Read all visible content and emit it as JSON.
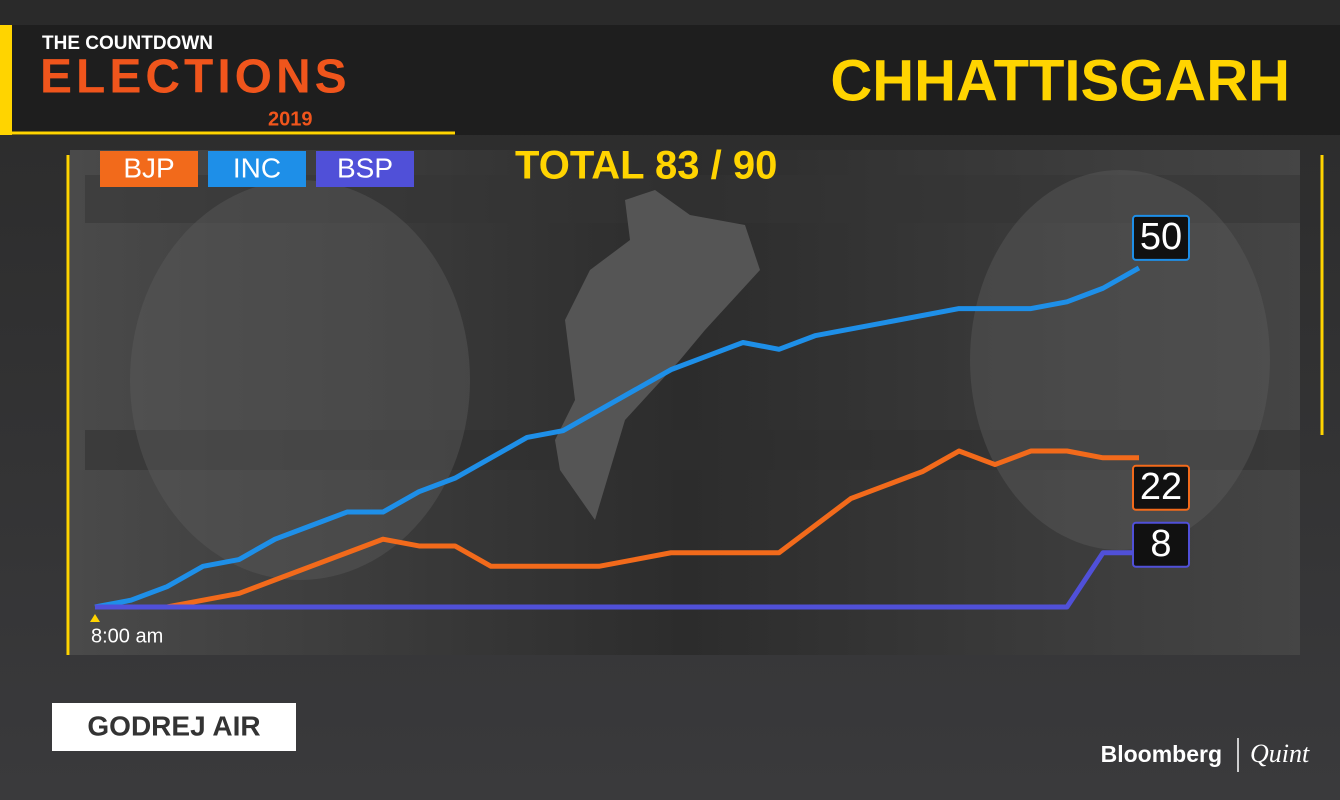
{
  "header": {
    "kicker": "THE COUNTDOWN",
    "brand": "ELECTIONS",
    "year": "2019",
    "state": "CHHATTISGARH"
  },
  "sponsor": "GODREJ AIR",
  "logo": {
    "left": "Bloomberg",
    "right": "Quint"
  },
  "chart_data": {
    "type": "line",
    "title": "TOTAL 83 / 90",
    "categories": [
      "8:00 am",
      null,
      null,
      null,
      null,
      null,
      null,
      null,
      null,
      null,
      null,
      null,
      null,
      null,
      null,
      null,
      null,
      null,
      null,
      null,
      null,
      null,
      null,
      null,
      null,
      null,
      null,
      null,
      null,
      null
    ],
    "ylim": [
      0,
      55
    ],
    "series": [
      {
        "name": "BJP",
        "color": "#f26a1b",
        "values": [
          0,
          0,
          0,
          1,
          2,
          4,
          6,
          8,
          10,
          9,
          9,
          6,
          6,
          6,
          6,
          7,
          8,
          8,
          8,
          8,
          12,
          16,
          18,
          20,
          23,
          21,
          23,
          23,
          22,
          22
        ]
      },
      {
        "name": "INC",
        "color": "#1e8fe8",
        "values": [
          0,
          1,
          3,
          6,
          7,
          10,
          12,
          14,
          14,
          17,
          19,
          22,
          25,
          26,
          29,
          32,
          35,
          37,
          39,
          38,
          40,
          41,
          42,
          43,
          44,
          44,
          44,
          45,
          47,
          50
        ]
      },
      {
        "name": "BSP",
        "color": "#5050d8",
        "values": [
          0,
          0,
          0,
          0,
          0,
          0,
          0,
          0,
          0,
          0,
          0,
          0,
          0,
          0,
          0,
          0,
          0,
          0,
          0,
          0,
          0,
          0,
          0,
          0,
          0,
          0,
          0,
          0,
          8,
          8
        ]
      }
    ]
  }
}
